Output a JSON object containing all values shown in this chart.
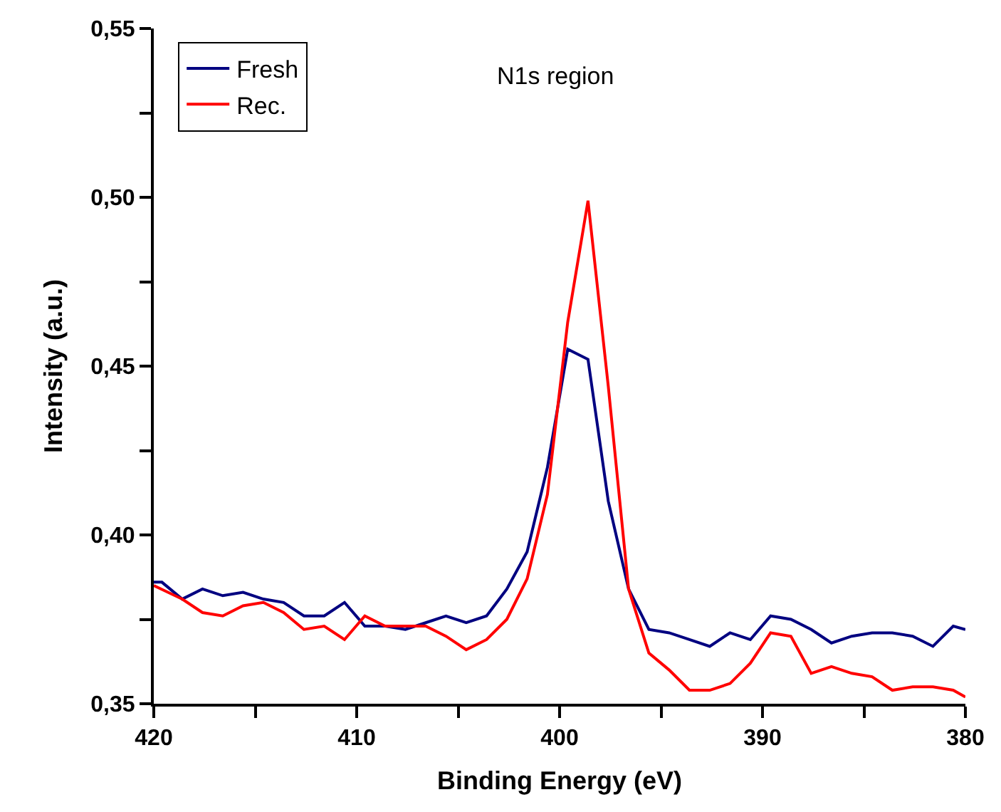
{
  "chart_data": {
    "type": "line",
    "xlabel": "Binding Energy (eV)",
    "ylabel": "Intensity (a.u.)",
    "annotations": [
      "N1s region"
    ],
    "series": [
      {
        "name": "Fresh",
        "color": "#000080",
        "x": [
          420,
          419.6,
          418.6,
          417.6,
          416.6,
          415.6,
          414.6,
          413.6,
          412.6,
          411.6,
          410.6,
          409.6,
          408.6,
          407.6,
          406.6,
          405.6,
          404.6,
          403.6,
          402.6,
          401.6,
          400.6,
          399.6,
          398.6,
          397.6,
          396.6,
          395.6,
          394.6,
          393.6,
          392.6,
          391.6,
          390.6,
          389.6,
          388.6,
          387.6,
          386.6,
          385.6,
          384.6,
          383.6,
          382.6,
          381.6,
          380.6,
          380
        ],
        "values": [
          0.386,
          0.386,
          0.381,
          0.384,
          0.382,
          0.383,
          0.381,
          0.38,
          0.376,
          0.376,
          0.38,
          0.373,
          0.373,
          0.372,
          0.374,
          0.376,
          0.374,
          0.376,
          0.384,
          0.395,
          0.42,
          0.455,
          0.452,
          0.41,
          0.384,
          0.372,
          0.371,
          0.369,
          0.367,
          0.371,
          0.369,
          0.376,
          0.375,
          0.372,
          0.368,
          0.37,
          0.371,
          0.371,
          0.37,
          0.367,
          0.373,
          0.372
        ]
      },
      {
        "name": "Rec.",
        "color": "#ff0000",
        "x": [
          420,
          418.6,
          417.6,
          416.6,
          415.6,
          414.6,
          413.6,
          412.6,
          411.6,
          410.6,
          409.6,
          408.6,
          407.6,
          406.6,
          405.6,
          404.6,
          403.6,
          402.6,
          401.6,
          400.6,
          399.6,
          398.6,
          397.6,
          396.6,
          395.6,
          394.6,
          393.6,
          392.6,
          391.6,
          390.6,
          389.6,
          388.6,
          387.6,
          386.6,
          385.6,
          384.6,
          383.6,
          382.6,
          381.6,
          380.6,
          380
        ],
        "values": [
          0.385,
          0.381,
          0.377,
          0.376,
          0.379,
          0.38,
          0.377,
          0.372,
          0.373,
          0.369,
          0.376,
          0.373,
          0.373,
          0.373,
          0.37,
          0.366,
          0.369,
          0.375,
          0.387,
          0.412,
          0.463,
          0.499,
          0.444,
          0.384,
          0.365,
          0.36,
          0.354,
          0.354,
          0.356,
          0.362,
          0.371,
          0.37,
          0.359,
          0.361,
          0.359,
          0.358,
          0.354,
          0.355,
          0.355,
          0.354,
          0.352
        ]
      }
    ],
    "xlim": [
      420,
      380
    ],
    "xticks": [
      420,
      {
        "value": 415,
        "label": null
      },
      410,
      {
        "value": 405,
        "label": null
      },
      400,
      {
        "value": 395,
        "label": null
      },
      390,
      {
        "value": 385,
        "label": null
      },
      380
    ],
    "ylim": [
      0.35,
      0.55
    ],
    "yticks": [
      {
        "value": 0.35,
        "label": "0,35"
      },
      {
        "value": 0.375,
        "label": null
      },
      {
        "value": 0.4,
        "label": "0,40"
      },
      {
        "value": 0.425,
        "label": null
      },
      {
        "value": 0.45,
        "label": "0,45"
      },
      {
        "value": 0.475,
        "label": null
      },
      {
        "value": 0.5,
        "label": "0,50"
      },
      {
        "value": 0.525,
        "label": null
      },
      {
        "value": 0.55,
        "label": "0,55"
      }
    ],
    "legend": "top left",
    "marker": "none",
    "line_style": "solid"
  }
}
